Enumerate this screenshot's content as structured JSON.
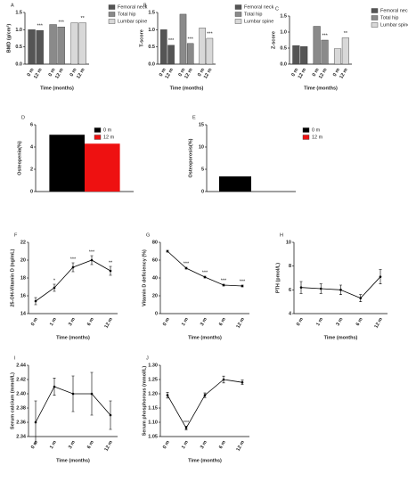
{
  "chart_data": [
    {
      "type": "bar",
      "panel": "A",
      "ylabel": "BMD (g/cm²)",
      "xlabel": "Time (months)",
      "categories": [
        "0 m",
        "12 m"
      ],
      "series": [
        {
          "name": "Femoral neck",
          "color": "#555555",
          "values": [
            1.0,
            0.98
          ],
          "annotation": "***"
        },
        {
          "name": "Total hip",
          "color": "#8a8a8a",
          "values": [
            1.15,
            1.08
          ],
          "annotation": "***"
        },
        {
          "name": "Lumbar spine",
          "color": "#d8d8d8",
          "values": [
            1.2,
            1.2
          ],
          "annotation": "**"
        }
      ],
      "ylim": [
        0,
        1.5
      ],
      "yticks": [
        {
          "value": 0,
          "label": "0.0"
        },
        0.5,
        {
          "value": 1,
          "label": "1.0"
        },
        1.5
      ]
    },
    {
      "type": "bar",
      "panel": "B",
      "ylabel": "T-score",
      "xlabel": "Time (months)",
      "categories": [
        "0 m",
        "12 m"
      ],
      "series": [
        {
          "name": "Femoral neck",
          "color": "#555555",
          "values": [
            1.0,
            0.55
          ],
          "annotation": "***"
        },
        {
          "name": "Total hip",
          "color": "#8a8a8a",
          "values": [
            1.45,
            0.6
          ],
          "annotation": "***"
        },
        {
          "name": "Lumbar spine",
          "color": "#d8d8d8",
          "values": [
            1.05,
            0.75
          ],
          "annotation": "***"
        }
      ],
      "ylim": [
        0,
        1.5
      ],
      "yticks": [
        {
          "value": 0,
          "label": "0.0"
        },
        0.5,
        {
          "value": 1,
          "label": "1.0"
        },
        1.5
      ]
    },
    {
      "type": "bar",
      "panel": "C",
      "ylabel": "Z-score",
      "xlabel": "Time (months)",
      "categories": [
        "0 m",
        "12 m"
      ],
      "series": [
        {
          "name": "Femoral neck",
          "color": "#555555",
          "values": [
            0.58,
            0.55
          ]
        },
        {
          "name": "Total hip",
          "color": "#8a8a8a",
          "values": [
            1.18,
            0.75
          ],
          "annotation": "***"
        },
        {
          "name": "Lumbar spine",
          "color": "#d8d8d8",
          "values": [
            0.48,
            0.82
          ],
          "annotation": "**"
        }
      ],
      "ylim": [
        0,
        1.5
      ],
      "yticks": [
        {
          "value": 0,
          "label": "0.0"
        },
        0.5,
        {
          "value": 1,
          "label": "1.0"
        },
        1.5
      ]
    },
    {
      "type": "bar",
      "panel": "D",
      "ylabel": "Osteopenia(%)",
      "legend": "upper right",
      "series": [
        {
          "name": "0 m",
          "color": "#000000",
          "values": [
            5.1
          ]
        },
        {
          "name": "12 m",
          "color": "#ee1111",
          "values": [
            4.3
          ]
        }
      ],
      "ylim": [
        0,
        6
      ],
      "yticks": [
        0,
        2,
        4,
        6
      ]
    },
    {
      "type": "bar",
      "panel": "E",
      "ylabel": "Osteoporosis(%)",
      "legend": "outside right",
      "series": [
        {
          "name": "0 m",
          "color": "#000000",
          "values": [
            3.4
          ]
        },
        {
          "name": "12 m",
          "color": "#ee1111",
          "values": [
            0
          ]
        }
      ],
      "ylim": [
        0,
        15
      ],
      "yticks": [
        0,
        5,
        10,
        15
      ]
    },
    {
      "type": "line",
      "panel": "F",
      "ylabel": "25-OH-Vitamin D (ng/mL)",
      "xlabel": "Time (months)",
      "categories": [
        "0 m",
        "1 m",
        "3 m",
        "6 m",
        "12 m"
      ],
      "values": [
        15.4,
        16.9,
        19.2,
        20.0,
        18.8
      ],
      "errors": [
        0.4,
        0.4,
        0.5,
        0.5,
        0.5
      ],
      "annotations": [
        null,
        "*",
        "***",
        "***",
        "**"
      ],
      "color": "#000000",
      "ylim": [
        14,
        22
      ],
      "yticks": [
        14,
        16,
        18,
        20,
        22
      ]
    },
    {
      "type": "line",
      "panel": "G",
      "ylabel": "Vitamin D deficiency (%)",
      "xlabel": "Time (months)",
      "categories": [
        "0 m",
        "1 m",
        "3 m",
        "6 m",
        "12 m"
      ],
      "values": [
        70,
        51,
        41,
        32,
        31
      ],
      "errors": [
        1,
        1,
        1,
        1,
        1
      ],
      "annotations": [
        null,
        "***",
        "***",
        "***",
        "***"
      ],
      "color": "#000000",
      "ylim": [
        0,
        80
      ],
      "yticks": [
        0,
        20,
        40,
        60,
        80
      ]
    },
    {
      "type": "line",
      "panel": "H",
      "ylabel": "PTH (pmol/L)",
      "xlabel": "Time (months)",
      "categories": [
        "0 m",
        "1 m",
        "3 m",
        "6 m",
        "12 m"
      ],
      "values": [
        6.2,
        6.1,
        6.0,
        5.3,
        7.1
      ],
      "errors": [
        0.5,
        0.4,
        0.4,
        0.3,
        0.6
      ],
      "color": "#000000",
      "ylim": [
        4,
        10
      ],
      "yticks": [
        4,
        6,
        8,
        10
      ]
    },
    {
      "type": "line",
      "panel": "I",
      "ylabel": "Serum calcium (mmol/L)",
      "xlabel": "Time (months)",
      "categories": [
        "0 m",
        "1 m",
        "3 m",
        "6 m",
        "12 m"
      ],
      "values": [
        2.36,
        2.41,
        2.4,
        2.4,
        2.37
      ],
      "errors": [
        0.03,
        0.012,
        0.025,
        0.03,
        0.02
      ],
      "color": "#000000",
      "ylim": [
        2.34,
        2.44
      ],
      "yticks": [
        2.34,
        2.36,
        2.38,
        {
          "value": 2.4,
          "label": "2.40"
        },
        2.42,
        2.44
      ]
    },
    {
      "type": "line",
      "panel": "J",
      "ylabel": "Serum phosphorous (mmol/L)",
      "xlabel": "Time (months)",
      "categories": [
        "0 m",
        "1 m",
        "3 m",
        "6 m",
        "12 m"
      ],
      "values": [
        1.195,
        1.08,
        1.195,
        1.25,
        1.24
      ],
      "errors": [
        0.01,
        0.006,
        0.008,
        0.012,
        0.008
      ],
      "annotations": [
        null,
        "***",
        null,
        null,
        null
      ],
      "color": "#000000",
      "ylim": [
        1.05,
        1.3
      ],
      "yticks": [
        1.05,
        {
          "value": 1.1,
          "label": "1.10"
        },
        1.15,
        {
          "value": 1.2,
          "label": "1.20"
        },
        1.25,
        {
          "value": 1.3,
          "label": "1.30"
        }
      ]
    }
  ]
}
